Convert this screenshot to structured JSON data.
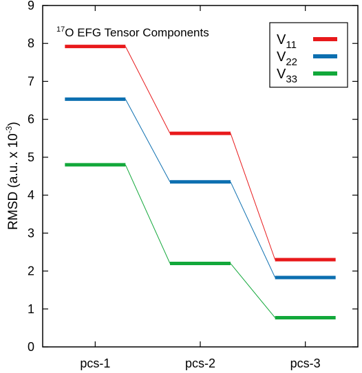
{
  "chart_data": {
    "type": "line",
    "annotation": {
      "sup": "17",
      "text": "O EFG Tensor Components"
    },
    "ylabel": {
      "main": "RMSD (a.u. x 10",
      "sup": "-3",
      "close": ")"
    },
    "xlabel": "",
    "ylim": [
      0,
      9
    ],
    "yticks": [
      "0",
      "1",
      "2",
      "3",
      "4",
      "5",
      "6",
      "7",
      "8",
      "9"
    ],
    "categories": [
      "pcs-1",
      "pcs-2",
      "pcs-3"
    ],
    "grid": false,
    "legend_position": "top-right",
    "series": [
      {
        "name": "V",
        "sub": "11",
        "color": "#e8191b",
        "values": [
          7.92,
          5.63,
          2.3
        ]
      },
      {
        "name": "V",
        "sub": "22",
        "color": "#0c6fb0",
        "values": [
          6.53,
          4.35,
          1.83
        ]
      },
      {
        "name": "V",
        "sub": "33",
        "color": "#12a83a",
        "values": [
          4.8,
          2.2,
          0.77
        ]
      }
    ]
  }
}
